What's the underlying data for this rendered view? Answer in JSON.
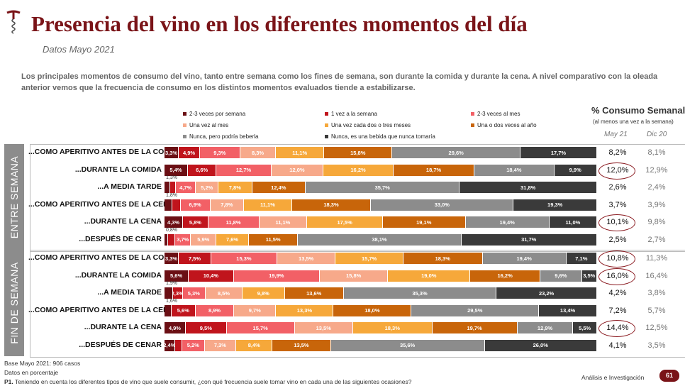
{
  "header": {
    "title": "Presencia del vino en los diferentes momentos del día",
    "subtitle": "Datos Mayo 2021",
    "intro": "Los principales momentos de consumo del vino, tanto entre semana como los fines de semana, son durante la comida y durante la cena. A nivel comparativo con la oleada anterior vemos que la frecuencia de consumo en los distintos momentos evaluados tiende a estabilizarse."
  },
  "consumo": {
    "title": "% Consumo Semanal",
    "subtitle": "(al menos una vez a la semana)",
    "col_may": "May 21",
    "col_dic": "Dic 20"
  },
  "chart_data": {
    "type": "bar",
    "stacked": true,
    "orientation": "horizontal",
    "legend": [
      {
        "name": "2-3 veces por semana",
        "color": "#6b0f14"
      },
      {
        "name": "1 vez a la semana",
        "color": "#c0141c"
      },
      {
        "name": "2-3 veces al mes",
        "color": "#f26066"
      },
      {
        "name": "Una vez al mes",
        "color": "#f7a98a"
      },
      {
        "name": "Una vez cada dos o tres meses",
        "color": "#f6a83a"
      },
      {
        "name": "Una o dos veces al año",
        "color": "#c8650a"
      },
      {
        "name": "Nunca, pero podría beberla",
        "color": "#8c8c8c"
      },
      {
        "name": "Nunca, es una bebida que nunca tomaría",
        "color": "#3a3a3a"
      }
    ],
    "groups": [
      {
        "name": "ENTRE SEMANA",
        "rows": [
          {
            "label": "...COMO APERITIVO ANTES DE LA COMIDA",
            "values": [
              3.3,
              4.9,
              9.3,
              8.3,
              11.1,
              15.8,
              29.6,
              17.7
            ],
            "may21": "8,2%",
            "dic20": "8,1%",
            "circled": false
          },
          {
            "label": "...DURANTE LA COMIDA",
            "values": [
              5.4,
              6.6,
              12.7,
              12.0,
              16.2,
              18.7,
              18.4,
              9.9
            ],
            "may21": "12,0%",
            "dic20": "12,9%",
            "circled": true
          },
          {
            "label": "...A MEDIA TARDE",
            "values": [
              1.3,
              1.3,
              4.7,
              5.2,
              7.8,
              12.4,
              35.7,
              31.8
            ],
            "may21": "2,6%",
            "dic20": "2,4%",
            "circled": false
          },
          {
            "label": "...COMO APERITIVO ANTES DE LA CENA",
            "values": [
              1.8,
              1.9,
              6.9,
              7.8,
              11.1,
              18.3,
              33.0,
              19.3
            ],
            "may21": "3,7%",
            "dic20": "3,9%",
            "circled": false
          },
          {
            "label": "...DURANTE LA CENA",
            "values": [
              4.3,
              5.8,
              11.8,
              11.1,
              17.5,
              19.1,
              19.4,
              11.0
            ],
            "may21": "10,1%",
            "dic20": "9,8%",
            "circled": true
          },
          {
            "label": "...DESPUÉS DE CENAR",
            "values": [
              0.8,
              1.7,
              3.7,
              5.9,
              7.6,
              11.5,
              38.1,
              31.7
            ],
            "may21": "2,5%",
            "dic20": "2,7%",
            "circled": false
          }
        ]
      },
      {
        "name": "FIN DE SEMANA",
        "rows": [
          {
            "label": "...COMO APERITIVO ANTES DE LA COMIDA",
            "values": [
              3.3,
              7.5,
              15.3,
              13.5,
              15.7,
              18.3,
              19.4,
              7.1
            ],
            "may21": "10,8%",
            "dic20": "11,3%",
            "circled": true
          },
          {
            "label": "...DURANTE LA COMIDA",
            "values": [
              5.6,
              10.4,
              19.9,
              15.8,
              19.0,
              16.2,
              9.6,
              3.5
            ],
            "may21": "16,0%",
            "dic20": "16,4%",
            "circled": true
          },
          {
            "label": "...A MEDIA TARDE",
            "values": [
              1.9,
              2.3,
              5.3,
              8.5,
              9.8,
              13.6,
              35.3,
              23.2
            ],
            "may21": "4,2%",
            "dic20": "3,8%",
            "circled": false
          },
          {
            "label": "...COMO APERITIVO ANTES DE LA CENA",
            "values": [
              1.6,
              5.6,
              8.9,
              9.7,
              13.3,
              18.0,
              29.5,
              13.4
            ],
            "may21": "7,2%",
            "dic20": "5,7%",
            "circled": false
          },
          {
            "label": "...DURANTE LA CENA",
            "values": [
              4.9,
              9.5,
              15.7,
              13.5,
              18.3,
              19.7,
              12.9,
              5.5
            ],
            "may21": "14,4%",
            "dic20": "12,5%",
            "circled": true
          },
          {
            "label": "...DESPUÉS DE CENAR",
            "values": [
              2.4,
              1.7,
              5.2,
              7.3,
              8.4,
              13.5,
              35.6,
              26.0
            ],
            "may21": "4,1%",
            "dic20": "3,5%",
            "circled": false
          }
        ]
      }
    ],
    "xlim": [
      0,
      100
    ]
  },
  "footer": {
    "base": "Base Mayo 2021: 906 casos",
    "datos": "Datos en porcentaje",
    "p1_label": "P1.",
    "p1_text": "Teniendo en cuenta los diferentes tipos de vino que suele consumir, ¿con qué frecuencia suele tomar vino en cada una de las siguientes ocasiones?",
    "analisis": "Análisis e Investigación",
    "page": "61"
  }
}
